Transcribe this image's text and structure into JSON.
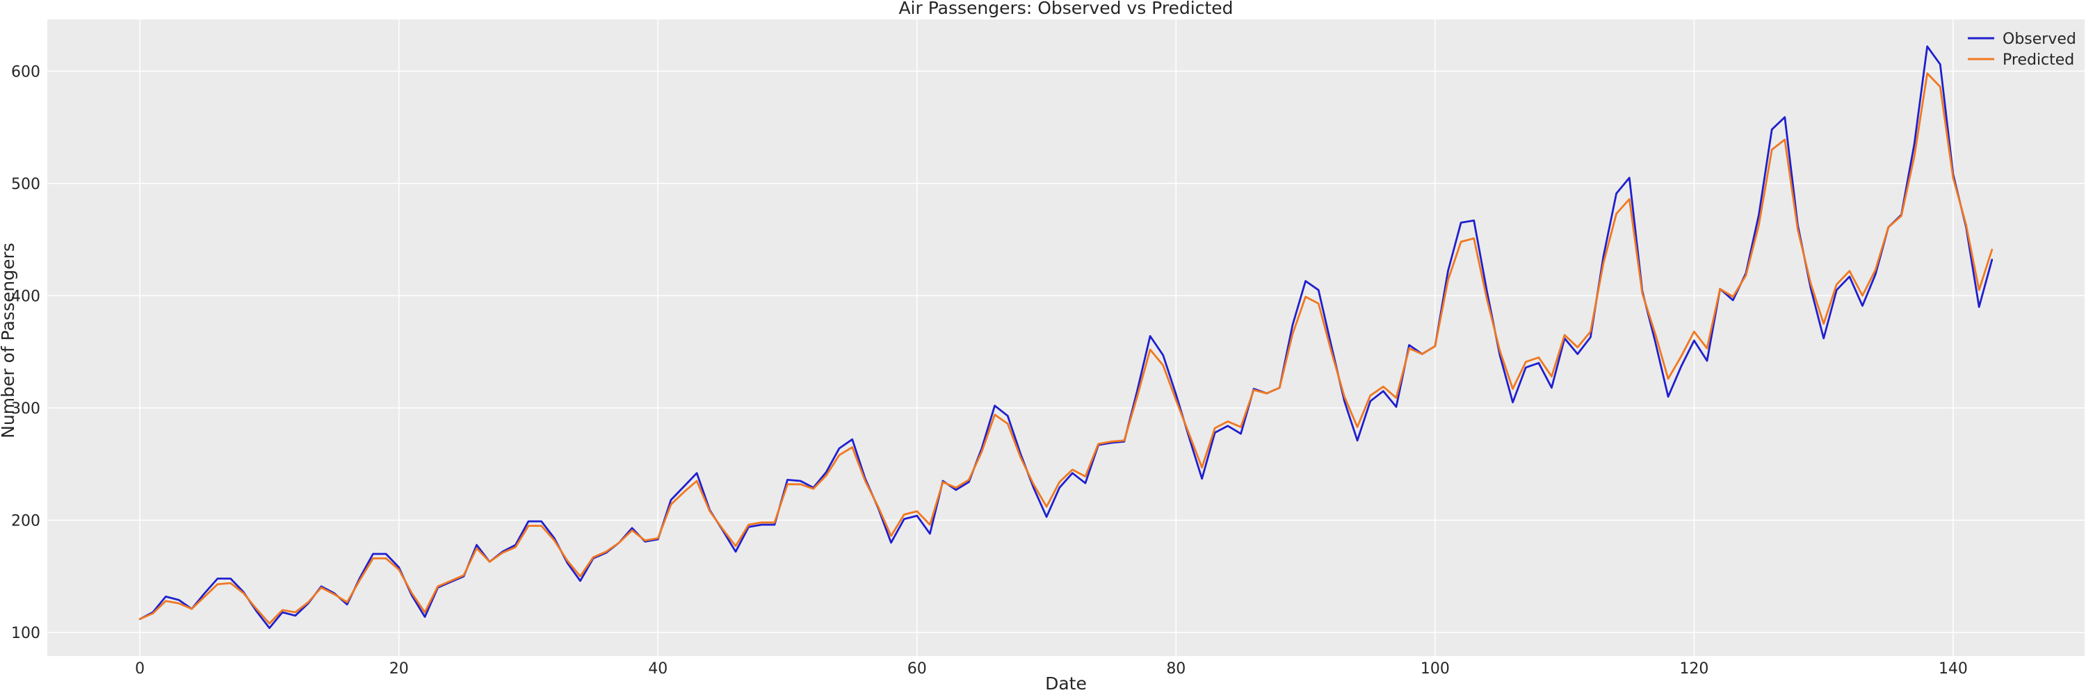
{
  "chart_data": {
    "type": "line",
    "title": "Air Passengers: Observed vs Predicted",
    "xlabel": "Date",
    "ylabel": "Number of Passengers",
    "xlim": [
      -7.15,
      150.15
    ],
    "ylim": [
      79,
      646
    ],
    "xticks": [
      0,
      20,
      40,
      60,
      80,
      100,
      120,
      140
    ],
    "yticks": [
      100,
      200,
      300,
      400,
      500,
      600
    ],
    "grid": true,
    "legend_position": "top-right",
    "x": [
      0,
      1,
      2,
      3,
      4,
      5,
      6,
      7,
      8,
      9,
      10,
      11,
      12,
      13,
      14,
      15,
      16,
      17,
      18,
      19,
      20,
      21,
      22,
      23,
      24,
      25,
      26,
      27,
      28,
      29,
      30,
      31,
      32,
      33,
      34,
      35,
      36,
      37,
      38,
      39,
      40,
      41,
      42,
      43,
      44,
      45,
      46,
      47,
      48,
      49,
      50,
      51,
      52,
      53,
      54,
      55,
      56,
      57,
      58,
      59,
      60,
      61,
      62,
      63,
      64,
      65,
      66,
      67,
      68,
      69,
      70,
      71,
      72,
      73,
      74,
      75,
      76,
      77,
      78,
      79,
      80,
      81,
      82,
      83,
      84,
      85,
      86,
      87,
      88,
      89,
      90,
      91,
      92,
      93,
      94,
      95,
      96,
      97,
      98,
      99,
      100,
      101,
      102,
      103,
      104,
      105,
      106,
      107,
      108,
      109,
      110,
      111,
      112,
      113,
      114,
      115,
      116,
      117,
      118,
      119,
      120,
      121,
      122,
      123,
      124,
      125,
      126,
      127,
      128,
      129,
      130,
      131,
      132,
      133,
      134,
      135,
      136,
      137,
      138,
      139,
      140,
      141,
      142,
      143
    ],
    "series": [
      {
        "name": "Observed",
        "color": "#1f1fcf",
        "values": [
          112,
          118,
          132,
          129,
          121,
          135,
          148,
          148,
          136,
          119,
          104,
          118,
          115,
          126,
          141,
          135,
          125,
          149,
          170,
          170,
          158,
          133,
          114,
          140,
          145,
          150,
          178,
          163,
          172,
          178,
          199,
          199,
          184,
          162,
          146,
          166,
          171,
          180,
          193,
          181,
          183,
          218,
          230,
          242,
          209,
          191,
          172,
          194,
          196,
          196,
          236,
          235,
          229,
          243,
          264,
          272,
          237,
          211,
          180,
          201,
          204,
          188,
          235,
          227,
          234,
          264,
          302,
          293,
          259,
          229,
          203,
          229,
          242,
          233,
          267,
          269,
          270,
          315,
          364,
          347,
          312,
          274,
          237,
          278,
          284,
          277,
          317,
          313,
          318,
          374,
          413,
          405,
          355,
          306,
          271,
          306,
          315,
          301,
          356,
          348,
          355,
          422,
          465,
          467,
          404,
          347,
          305,
          336,
          340,
          318,
          362,
          348,
          363,
          435,
          491,
          505,
          404,
          359,
          310,
          337,
          360,
          342,
          406,
          396,
          420,
          472,
          548,
          559,
          463,
          407,
          362,
          405,
          417,
          391,
          419,
          461,
          472,
          535,
          622,
          606,
          508,
          461,
          390,
          432
        ]
      },
      {
        "name": "Predicted",
        "color": "#f07820",
        "values": [
          112,
          117,
          128,
          126,
          121,
          132,
          143,
          144,
          135,
          121,
          108,
          120,
          118,
          127,
          140,
          134,
          127,
          147,
          166,
          166,
          156,
          135,
          118,
          141,
          146,
          151,
          175,
          163,
          171,
          176,
          195,
          195,
          182,
          164,
          150,
          167,
          172,
          180,
          191,
          182,
          184,
          214,
          225,
          235,
          208,
          192,
          177,
          196,
          198,
          198,
          232,
          232,
          228,
          240,
          258,
          265,
          235,
          212,
          186,
          205,
          208,
          196,
          234,
          229,
          236,
          261,
          294,
          286,
          256,
          232,
          212,
          234,
          245,
          239,
          268,
          270,
          271,
          310,
          352,
          338,
          307,
          277,
          247,
          282,
          288,
          283,
          316,
          313,
          318,
          366,
          399,
          393,
          350,
          310,
          283,
          311,
          319,
          309,
          353,
          348,
          355,
          414,
          448,
          451,
          397,
          351,
          317,
          341,
          345,
          328,
          365,
          354,
          368,
          429,
          473,
          486,
          402,
          366,
          326,
          346,
          368,
          353,
          406,
          399,
          418,
          463,
          530,
          539,
          459,
          411,
          375,
          410,
          422,
          400,
          423,
          461,
          471,
          524,
          598,
          586,
          505,
          463,
          405,
          441
        ]
      }
    ]
  }
}
